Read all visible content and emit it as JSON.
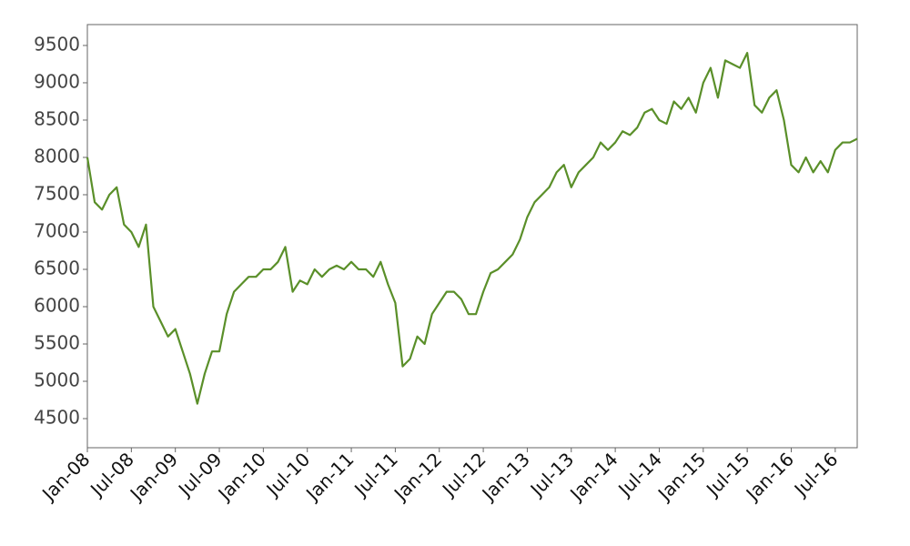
{
  "chart_data": {
    "type": "line",
    "x": [
      "2008-01",
      "2008-02",
      "2008-03",
      "2008-04",
      "2008-05",
      "2008-06",
      "2008-07",
      "2008-08",
      "2008-09",
      "2008-10",
      "2008-11",
      "2008-12",
      "2009-01",
      "2009-02",
      "2009-03",
      "2009-04",
      "2009-05",
      "2009-06",
      "2009-07",
      "2009-08",
      "2009-09",
      "2009-10",
      "2009-11",
      "2009-12",
      "2010-01",
      "2010-02",
      "2010-03",
      "2010-04",
      "2010-05",
      "2010-06",
      "2010-07",
      "2010-08",
      "2010-09",
      "2010-10",
      "2010-11",
      "2010-12",
      "2011-01",
      "2011-02",
      "2011-03",
      "2011-04",
      "2011-05",
      "2011-06",
      "2011-07",
      "2011-08",
      "2011-09",
      "2011-10",
      "2011-11",
      "2011-12",
      "2012-01",
      "2012-02",
      "2012-03",
      "2012-04",
      "2012-05",
      "2012-06",
      "2012-07",
      "2012-08",
      "2012-09",
      "2012-10",
      "2012-11",
      "2012-12",
      "2013-01",
      "2013-02",
      "2013-03",
      "2013-04",
      "2013-05",
      "2013-06",
      "2013-07",
      "2013-08",
      "2013-09",
      "2013-10",
      "2013-11",
      "2013-12",
      "2014-01",
      "2014-02",
      "2014-03",
      "2014-04",
      "2014-05",
      "2014-06",
      "2014-07",
      "2014-08",
      "2014-09",
      "2014-10",
      "2014-11",
      "2014-12",
      "2015-01",
      "2015-02",
      "2015-03",
      "2015-04",
      "2015-05",
      "2015-06",
      "2015-07",
      "2015-08",
      "2015-09",
      "2015-10",
      "2015-11",
      "2015-12",
      "2016-01",
      "2016-02",
      "2016-03",
      "2016-04",
      "2016-05",
      "2016-06",
      "2016-07",
      "2016-08",
      "2016-09",
      "2016-10"
    ],
    "series": [
      {
        "color": "#5a8f29",
        "values": [
          8000,
          7400,
          7300,
          7500,
          7600,
          7100,
          7000,
          6800,
          7100,
          6000,
          5800,
          5600,
          5700,
          5400,
          5100,
          4700,
          5100,
          5400,
          5400,
          5900,
          6200,
          6300,
          6400,
          6400,
          6500,
          6500,
          6600,
          6800,
          6200,
          6350,
          6300,
          6500,
          6400,
          6500,
          6550,
          6500,
          6600,
          6500,
          6500,
          6400,
          6600,
          6300,
          6050,
          5200,
          5300,
          5600,
          5500,
          5900,
          6050,
          6200,
          6200,
          6100,
          5900,
          5900,
          6200,
          6450,
          6500,
          6600,
          6700,
          6900,
          7200,
          7400,
          7500,
          7600,
          7800,
          7900,
          7600,
          7800,
          7900,
          8000,
          8200,
          8100,
          8200,
          8350,
          8300,
          8400,
          8600,
          8650,
          8500,
          8450,
          8750,
          8650,
          8800,
          8600,
          9000,
          9200,
          8800,
          9300,
          9250,
          9200,
          9400,
          8700,
          8600,
          8800,
          8900,
          8500,
          7900,
          7800,
          8000,
          7800,
          7950,
          7800,
          8100,
          8200,
          8200,
          8250
        ]
      }
    ],
    "xlim": [
      "2008-01",
      "2016-10"
    ],
    "ylim": [
      4110,
      9780
    ],
    "yticks": [
      4500,
      5000,
      5500,
      6000,
      6500,
      7000,
      7500,
      8000,
      8500,
      9000,
      9500
    ],
    "xticks": [
      {
        "value": "2008-01",
        "label": "Jan-08"
      },
      {
        "value": "2008-07",
        "label": "Jul-08"
      },
      {
        "value": "2009-01",
        "label": "Jan-09"
      },
      {
        "value": "2009-07",
        "label": "Jul-09"
      },
      {
        "value": "2010-01",
        "label": "Jan-10"
      },
      {
        "value": "2010-07",
        "label": "Jul-10"
      },
      {
        "value": "2011-01",
        "label": "Jan-11"
      },
      {
        "value": "2011-07",
        "label": "Jul-11"
      },
      {
        "value": "2012-01",
        "label": "Jan-12"
      },
      {
        "value": "2012-07",
        "label": "Jul-12"
      },
      {
        "value": "2013-01",
        "label": "Jan-13"
      },
      {
        "value": "2013-07",
        "label": "Jul-13"
      },
      {
        "value": "2014-01",
        "label": "Jan-14"
      },
      {
        "value": "2014-07",
        "label": "Jul-14"
      },
      {
        "value": "2015-01",
        "label": "Jan-15"
      },
      {
        "value": "2015-07",
        "label": "Jul-15"
      },
      {
        "value": "2016-01",
        "label": "Jan-16"
      },
      {
        "value": "2016-07",
        "label": "Jul-16"
      }
    ]
  }
}
